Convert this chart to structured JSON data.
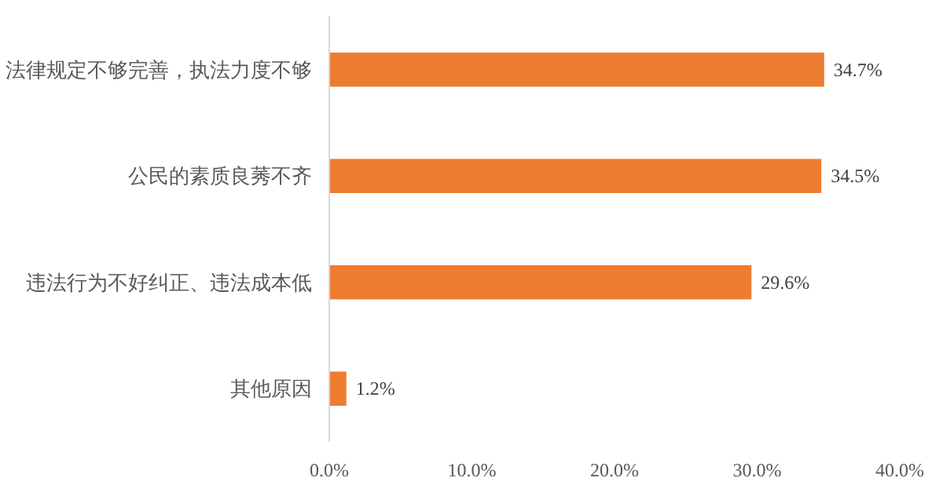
{
  "chart_data": {
    "type": "bar",
    "orientation": "horizontal",
    "categories": [
      "法律规定不够完善，执法力度不够",
      "公民的素质良莠不齐",
      "违法行为不好纠正、违法成本低",
      "其他原因"
    ],
    "values": [
      34.7,
      34.5,
      29.6,
      1.2
    ],
    "value_labels": [
      "34.7%",
      "34.5%",
      "29.6%",
      "1.2%"
    ],
    "color": "#ed7d31",
    "xlim": [
      0,
      40
    ],
    "xticks": [
      {
        "value": 0,
        "label": "0.0%"
      },
      {
        "value": 10,
        "label": "10.0%"
      },
      {
        "value": 20,
        "label": "20.0%"
      },
      {
        "value": 30,
        "label": "30.0%"
      },
      {
        "value": 40,
        "label": "40.0%"
      }
    ],
    "grid": false
  }
}
